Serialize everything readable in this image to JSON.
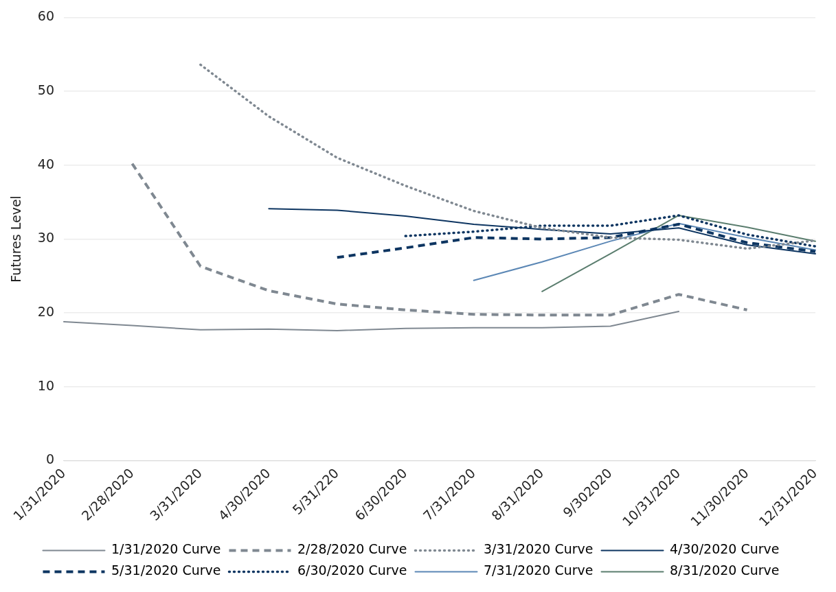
{
  "chart_data": {
    "type": "line",
    "ylabel": "Futures Level",
    "categories": [
      "1/31/2020",
      "2/28/2020",
      "3/31/2020",
      "4/30/2020",
      "5/31/220",
      "6/30/2020",
      "7/31/2020",
      "8/31/2020",
      "9/302020",
      "10/31/2020",
      "11/30/2020",
      "12/31/2020"
    ],
    "series": [
      {
        "name": "1/31/2020 Curve",
        "color": "#7f8891",
        "line_style": "solid",
        "values": [
          18.8,
          18.3,
          17.7,
          17.8,
          17.6,
          17.9,
          18.0,
          18.0,
          18.2,
          20.2,
          null,
          null
        ]
      },
      {
        "name": "2/28/2020 Curve",
        "color": "#7f8891",
        "line_style": "dashed",
        "values": [
          null,
          40.2,
          26.3,
          23.0,
          21.2,
          20.4,
          19.8,
          19.7,
          19.7,
          22.5,
          20.4,
          null
        ]
      },
      {
        "name": "3/31/2020 Curve",
        "color": "#7f8891",
        "line_style": "dotted",
        "values": [
          null,
          null,
          53.6,
          46.6,
          41.0,
          37.2,
          33.8,
          31.5,
          30.2,
          29.9,
          28.7,
          29.8
        ]
      },
      {
        "name": "4/30/2020 Curve",
        "color": "#0d3561",
        "line_style": "solid",
        "values": [
          null,
          null,
          null,
          34.1,
          33.9,
          33.1,
          32.0,
          31.3,
          30.7,
          31.5,
          29.2,
          28.0
        ]
      },
      {
        "name": "5/31/2020 Curve",
        "color": "#0d3561",
        "line_style": "dashed",
        "values": [
          null,
          null,
          null,
          null,
          27.5,
          28.8,
          30.2,
          30.0,
          30.2,
          32.0,
          29.5,
          28.3
        ]
      },
      {
        "name": "6/30/2020 Curve",
        "color": "#0d3561",
        "line_style": "dotted",
        "values": [
          null,
          null,
          null,
          null,
          null,
          30.4,
          31.0,
          31.8,
          31.8,
          33.2,
          30.6,
          29.0
        ]
      },
      {
        "name": "7/31/2020 Curve",
        "color": "#5b87b5",
        "line_style": "solid",
        "values": [
          null,
          null,
          null,
          null,
          null,
          null,
          24.4,
          26.9,
          29.7,
          32.1,
          30.2,
          28.5
        ]
      },
      {
        "name": "8/31/2020 Curve",
        "color": "#5a7d6e",
        "line_style": "solid",
        "values": [
          null,
          null,
          null,
          null,
          null,
          null,
          null,
          22.9,
          28.0,
          33.2,
          31.6,
          29.7
        ]
      }
    ],
    "ylim": [
      0,
      60
    ],
    "yticks": [
      0,
      10,
      20,
      30,
      40,
      50,
      60
    ],
    "grid": "y",
    "legend": "bottom",
    "marker": "none"
  }
}
